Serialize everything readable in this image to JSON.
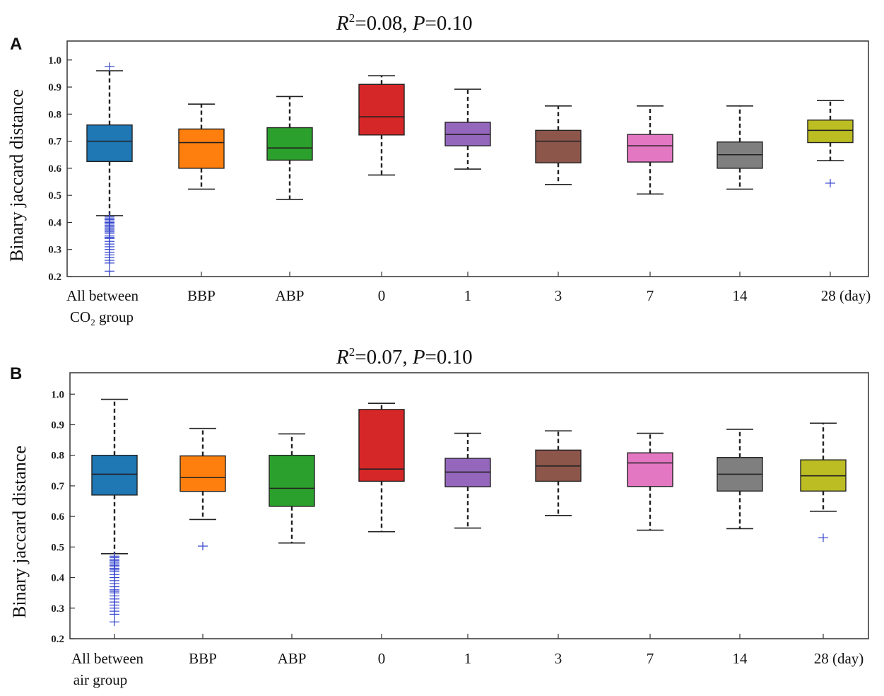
{
  "chart_data": [
    {
      "panel": "A",
      "type": "box",
      "title_r2": "=0.08, ",
      "title_p": "=0.10",
      "ylabel": "Binary jaccard distance",
      "ylim": [
        0.2,
        1.07
      ],
      "yticks": [
        0.2,
        0.3,
        0.4,
        0.5,
        0.6,
        0.7,
        0.8,
        0.9,
        1.0
      ],
      "ytick_labels": [
        "0.2",
        "0.3",
        "0.4",
        "0.5",
        "0.6",
        "0.7",
        "0.8",
        "0.9",
        "1.0"
      ],
      "categories": [
        "All between",
        "BBP",
        "ABP",
        "0",
        "1",
        "3",
        "7",
        "14",
        "28 (day)"
      ],
      "first_label_line2": "CO",
      "first_label_sub": "2",
      "first_label_tail": " group",
      "boxes": [
        {
          "color": "#1f77b4",
          "whislo": 0.425,
          "q1": 0.625,
          "med": 0.7,
          "q3": 0.76,
          "whishi": 0.96,
          "fliers": [
            0.975,
            0.42,
            0.415,
            0.41,
            0.405,
            0.4,
            0.395,
            0.39,
            0.385,
            0.38,
            0.375,
            0.37,
            0.365,
            0.36,
            0.35,
            0.345,
            0.34,
            0.33,
            0.32,
            0.31,
            0.3,
            0.29,
            0.28,
            0.27,
            0.26,
            0.25,
            0.22
          ]
        },
        {
          "color": "#ff7f0e",
          "whislo": 0.523,
          "q1": 0.6,
          "med": 0.695,
          "q3": 0.745,
          "whishi": 0.837,
          "fliers": []
        },
        {
          "color": "#2ca02c",
          "whislo": 0.485,
          "q1": 0.63,
          "med": 0.675,
          "q3": 0.75,
          "whishi": 0.865,
          "fliers": []
        },
        {
          "color": "#d62728",
          "whislo": 0.575,
          "q1": 0.723,
          "med": 0.79,
          "q3": 0.91,
          "whishi": 0.942,
          "fliers": []
        },
        {
          "color": "#9467bd",
          "whislo": 0.597,
          "q1": 0.683,
          "med": 0.725,
          "q3": 0.77,
          "whishi": 0.892,
          "fliers": []
        },
        {
          "color": "#8c564b",
          "whislo": 0.54,
          "q1": 0.62,
          "med": 0.7,
          "q3": 0.74,
          "whishi": 0.83,
          "fliers": []
        },
        {
          "color": "#e377c2",
          "whislo": 0.505,
          "q1": 0.623,
          "med": 0.683,
          "q3": 0.725,
          "whishi": 0.83,
          "fliers": []
        },
        {
          "color": "#7f7f7f",
          "whislo": 0.523,
          "q1": 0.6,
          "med": 0.65,
          "q3": 0.697,
          "whishi": 0.83,
          "fliers": []
        },
        {
          "color": "#bcbd22",
          "whislo": 0.628,
          "q1": 0.695,
          "med": 0.74,
          "q3": 0.778,
          "whishi": 0.85,
          "fliers": [
            0.545
          ]
        }
      ]
    },
    {
      "panel": "B",
      "type": "box",
      "title_r2": "=0.07, ",
      "title_p": "=0.10",
      "ylabel": "Binary jaccard distance",
      "ylim": [
        0.2,
        1.07
      ],
      "yticks": [
        0.2,
        0.3,
        0.4,
        0.5,
        0.6,
        0.7,
        0.8,
        0.9,
        1.0
      ],
      "ytick_labels": [
        "0.2",
        "0.3",
        "0.4",
        "0.5",
        "0.6",
        "0.7",
        "0.8",
        "0.9",
        "1.0"
      ],
      "categories": [
        "All between",
        "BBP",
        "ABP",
        "0",
        "1",
        "3",
        "7",
        "14",
        "28 (day)"
      ],
      "first_label_line2": "air group",
      "first_label_sub": "",
      "first_label_tail": "",
      "boxes": [
        {
          "color": "#1f77b4",
          "whislo": 0.478,
          "q1": 0.67,
          "med": 0.738,
          "q3": 0.8,
          "whishi": 0.983,
          "fliers": [
            0.47,
            0.465,
            0.46,
            0.455,
            0.45,
            0.445,
            0.44,
            0.435,
            0.43,
            0.425,
            0.42,
            0.41,
            0.4,
            0.39,
            0.38,
            0.37,
            0.36,
            0.355,
            0.35,
            0.34,
            0.33,
            0.32,
            0.31,
            0.3,
            0.29,
            0.28,
            0.255
          ]
        },
        {
          "color": "#ff7f0e",
          "whislo": 0.59,
          "q1": 0.682,
          "med": 0.727,
          "q3": 0.798,
          "whishi": 0.888,
          "fliers": [
            0.503
          ]
        },
        {
          "color": "#2ca02c",
          "whislo": 0.513,
          "q1": 0.633,
          "med": 0.692,
          "q3": 0.8,
          "whishi": 0.87,
          "fliers": []
        },
        {
          "color": "#d62728",
          "whislo": 0.55,
          "q1": 0.715,
          "med": 0.755,
          "q3": 0.95,
          "whishi": 0.97,
          "fliers": []
        },
        {
          "color": "#9467bd",
          "whislo": 0.562,
          "q1": 0.697,
          "med": 0.745,
          "q3": 0.79,
          "whishi": 0.872,
          "fliers": []
        },
        {
          "color": "#8c564b",
          "whislo": 0.603,
          "q1": 0.715,
          "med": 0.765,
          "q3": 0.817,
          "whishi": 0.88,
          "fliers": []
        },
        {
          "color": "#e377c2",
          "whislo": 0.555,
          "q1": 0.698,
          "med": 0.775,
          "q3": 0.808,
          "whishi": 0.872,
          "fliers": []
        },
        {
          "color": "#7f7f7f",
          "whislo": 0.56,
          "q1": 0.683,
          "med": 0.738,
          "q3": 0.793,
          "whishi": 0.885,
          "fliers": []
        },
        {
          "color": "#bcbd22",
          "whislo": 0.617,
          "q1": 0.683,
          "med": 0.733,
          "q3": 0.785,
          "whishi": 0.905,
          "fliers": [
            0.53
          ]
        }
      ]
    }
  ],
  "panel_letters": [
    "A",
    "B"
  ],
  "title_r_letter": "R",
  "title_r_sup": "2",
  "title_p_letter": "P",
  "colors": {
    "frame": "#333333",
    "flier": "#3344cc",
    "whisker": "#222222"
  }
}
